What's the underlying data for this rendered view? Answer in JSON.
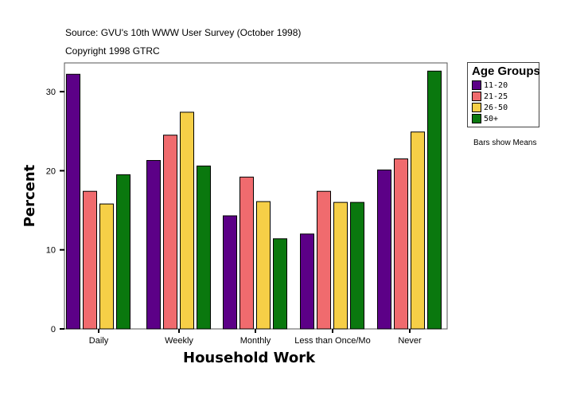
{
  "header": {
    "source": "Source: GVU's 10th WWW User Survey (October 1998)",
    "copyright": "Copyright 1998 GTRC"
  },
  "note": "Bars show Means",
  "chart_data": {
    "type": "bar",
    "xlabel": "Household Work",
    "ylabel": "Percent",
    "ylim": [
      0,
      33.7
    ],
    "yticks": [
      0,
      10,
      20,
      30
    ],
    "categories": [
      "Daily",
      "Weekly",
      "Monthly",
      "Less than Once/Mo",
      "Never"
    ],
    "legend_title": "Age Groups",
    "legend_position": "right",
    "grid": false,
    "series": [
      {
        "name": "11-20",
        "color": "#5c0087",
        "values": [
          32.2,
          21.3,
          14.3,
          12.0,
          20.1
        ]
      },
      {
        "name": "21-25",
        "color": "#f06b6e",
        "values": [
          17.4,
          24.5,
          19.2,
          17.4,
          21.5
        ]
      },
      {
        "name": "26-50",
        "color": "#f6cf47",
        "values": [
          15.8,
          27.4,
          16.1,
          16.0,
          24.9
        ]
      },
      {
        "name": "50+",
        "color": "#0a780e",
        "values": [
          19.5,
          20.6,
          11.4,
          16.0,
          32.6
        ]
      }
    ]
  }
}
